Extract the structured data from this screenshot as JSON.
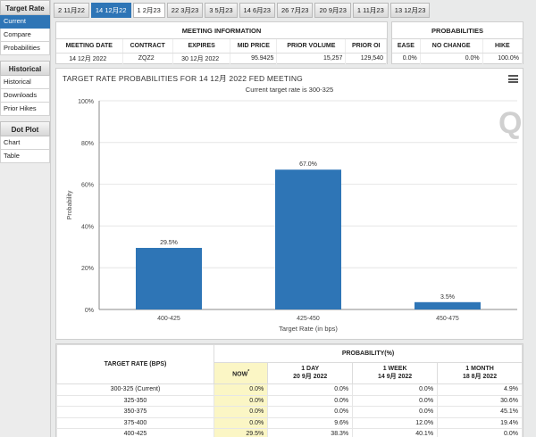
{
  "sidebar": {
    "sections": [
      {
        "title": "Target Rate",
        "items": [
          "Current",
          "Compare",
          "Probabilities"
        ]
      },
      {
        "title": "Historical",
        "items": [
          "Historical",
          "Downloads",
          "Prior Hikes"
        ]
      },
      {
        "title": "Dot Plot",
        "items": [
          "Chart",
          "Table"
        ]
      }
    ]
  },
  "tabs": [
    "2 11月22",
    "14 12月22",
    "1 2月23",
    "22 3月23",
    "3 5月23",
    "14 6月23",
    "26 7月23",
    "20 9月23",
    "1 11月23",
    "13 12月23"
  ],
  "meeting_info": {
    "title": "MEETING INFORMATION",
    "headers": [
      "MEETING DATE",
      "CONTRACT",
      "EXPIRES",
      "MID PRICE",
      "PRIOR VOLUME",
      "PRIOR OI"
    ],
    "values": [
      "14 12月 2022",
      "ZQZ2",
      "30 12月 2022",
      "95.9425",
      "15,257",
      "129,540"
    ]
  },
  "probabilities_panel": {
    "title": "PROBABILITIES",
    "headers": [
      "EASE",
      "NO CHANGE",
      "HIKE"
    ],
    "values": [
      "0.0%",
      "0.0%",
      "100.0%"
    ]
  },
  "chart": {
    "title": "TARGET RATE PROBABILITIES FOR 14 12月 2022 FED MEETING",
    "subtitle": "Current target rate is 300-325",
    "watermark": "Q",
    "colors": {
      "bar": "#2e75b6",
      "grid": "#e6e6e6",
      "axis": "#888888"
    }
  },
  "chart_data": {
    "type": "bar",
    "categories": [
      "400-425",
      "425-450",
      "450-475"
    ],
    "values": [
      29.5,
      67.0,
      3.5
    ],
    "data_labels": [
      "29.5%",
      "67.0%",
      "3.5%"
    ],
    "title": "TARGET RATE PROBABILITIES FOR 14 12月 2022 FED MEETING",
    "subtitle": "Current target rate is 300-325",
    "xlabel": "Target Rate (in bps)",
    "ylabel": "Probability",
    "ylim": [
      0,
      100
    ],
    "yticks": [
      "0%",
      "20%",
      "40%",
      "60%",
      "80%",
      "100%"
    ],
    "grid": true
  },
  "prob_table": {
    "rate_header": "TARGET RATE (BPS)",
    "group_header": "PROBABILITY(%)",
    "columns": [
      {
        "label": "NOW",
        "sup": "*",
        "sub": ""
      },
      {
        "label": "1 DAY",
        "sup": "",
        "sub": "20 9月 2022"
      },
      {
        "label": "1 WEEK",
        "sup": "",
        "sub": "14 9月 2022"
      },
      {
        "label": "1 MONTH",
        "sup": "",
        "sub": "18 8月 2022"
      }
    ],
    "rows": [
      {
        "rate": "300-325 (Current)",
        "vals": [
          "0.0%",
          "0.0%",
          "0.0%",
          "4.9%"
        ]
      },
      {
        "rate": "325-350",
        "vals": [
          "0.0%",
          "0.0%",
          "0.0%",
          "30.6%"
        ]
      },
      {
        "rate": "350-375",
        "vals": [
          "0.0%",
          "0.0%",
          "0.0%",
          "45.1%"
        ]
      },
      {
        "rate": "375-400",
        "vals": [
          "0.0%",
          "9.6%",
          "12.0%",
          "19.4%"
        ]
      },
      {
        "rate": "400-425",
        "vals": [
          "29.5%",
          "38.3%",
          "40.1%",
          "0.0%"
        ]
      }
    ]
  }
}
